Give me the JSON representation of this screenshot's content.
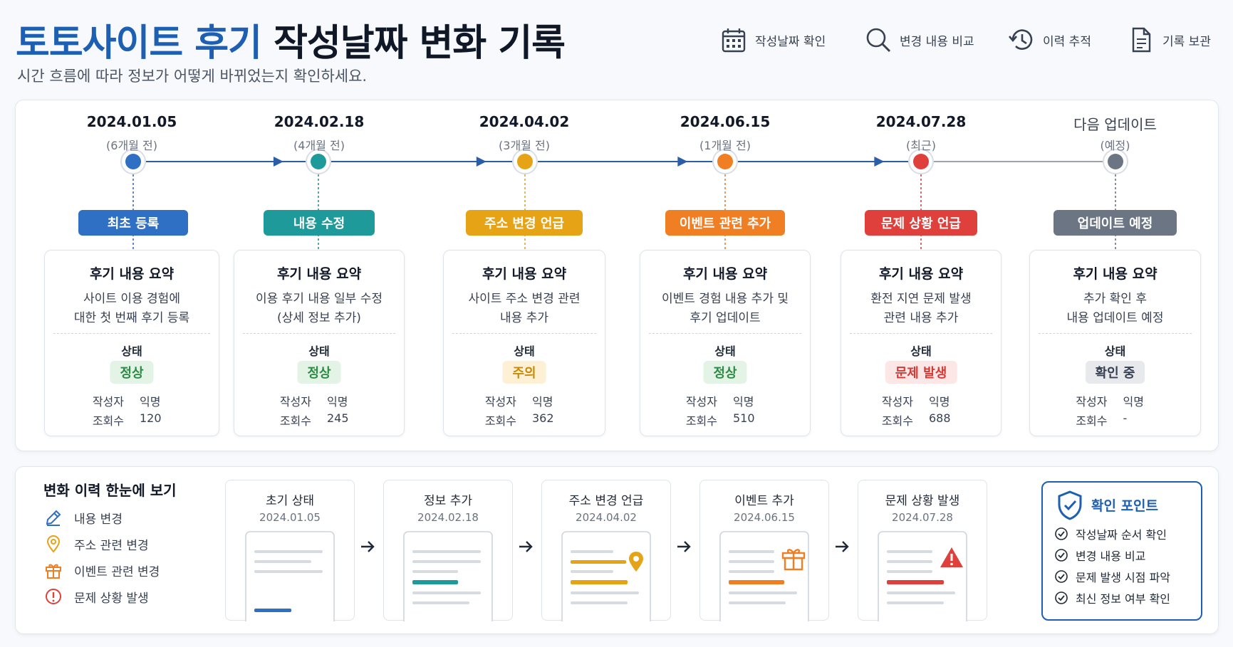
{
  "header": {
    "title_main": "토토사이트 후기",
    "title_rest": " 작성날짜 변화 기록",
    "subtitle": "시간 흐름에 따라 정보가 어떻게 바뀌었는지 확인하세요.",
    "actions": [
      {
        "label": "작성날짜 확인",
        "icon": "calendar-icon"
      },
      {
        "label": "변경 내용 비교",
        "icon": "search-icon"
      },
      {
        "label": "이력 추적",
        "icon": "history-icon"
      },
      {
        "label": "기록 보관",
        "icon": "document-icon"
      }
    ]
  },
  "timeline": {
    "stages": [
      {
        "date": "2024.01.05",
        "ago": "(6개월 전)",
        "tag": "최초 등록",
        "color": "#2f6fc4",
        "card_title": "후기 내용 요약",
        "desc": [
          "사이트 이용 경험에",
          "대한 첫 번째 후기 등록"
        ],
        "status_label": "상태",
        "status": "정상",
        "status_type": "normal",
        "author_label": "작성자",
        "author": "익명",
        "views_label": "조회수",
        "views": "120"
      },
      {
        "date": "2024.02.18",
        "ago": "(4개월 전)",
        "tag": "내용 수정",
        "color": "#1e9a9a",
        "card_title": "후기 내용 요약",
        "desc": [
          "이용 후기 내용 일부 수정",
          "(상세 정보 추가)"
        ],
        "status_label": "상태",
        "status": "정상",
        "status_type": "normal",
        "author_label": "작성자",
        "author": "익명",
        "views_label": "조회수",
        "views": "245"
      },
      {
        "date": "2024.04.02",
        "ago": "(3개월 전)",
        "tag": "주소 변경 언급",
        "color": "#e6a316",
        "card_title": "후기 내용 요약",
        "desc": [
          "사이트 주소 변경 관련",
          "내용 추가"
        ],
        "status_label": "상태",
        "status": "주의",
        "status_type": "warn",
        "author_label": "작성자",
        "author": "익명",
        "views_label": "조회수",
        "views": "362"
      },
      {
        "date": "2024.06.15",
        "ago": "(1개월 전)",
        "tag": "이벤트 관련 추가",
        "color": "#f07e23",
        "card_title": "후기 내용 요약",
        "desc": [
          "이벤트 경험 내용 추가 및",
          "후기 업데이트"
        ],
        "status_label": "상태",
        "status": "정상",
        "status_type": "normal",
        "author_label": "작성자",
        "author": "익명",
        "views_label": "조회수",
        "views": "510"
      },
      {
        "date": "2024.07.28",
        "ago": "(최근)",
        "tag": "문제 상황 언급",
        "color": "#e0403c",
        "card_title": "후기 내용 요약",
        "desc": [
          "환전 지연 문제 발생",
          "관련 내용 추가"
        ],
        "status_label": "상태",
        "status": "문제 발생",
        "status_type": "problem",
        "author_label": "작성자",
        "author": "익명",
        "views_label": "조회수",
        "views": "688"
      },
      {
        "date": "다음 업데이트",
        "ago": "(예정)",
        "tag": "업데이트 예정",
        "color": "#6b7583",
        "card_title": "후기 내용 요약",
        "desc": [
          "추가 확인 후",
          "내용 업데이트 예정"
        ],
        "status_label": "상태",
        "status": "확인 중",
        "status_type": "pending",
        "author_label": "작성자",
        "author": "익명",
        "views_label": "조회수",
        "views": "-"
      }
    ]
  },
  "history": {
    "title": "변화 이력 한눈에 보기",
    "legend": [
      {
        "label": "내용 변경",
        "icon": "edit-icon",
        "color": "#2f6fc4"
      },
      {
        "label": "주소 관련 변경",
        "icon": "location-pin-icon",
        "color": "#e6a316"
      },
      {
        "label": "이벤트 관련 변경",
        "icon": "gift-icon",
        "color": "#f07e23"
      },
      {
        "label": "문제 상황 발생",
        "icon": "alert-circle-icon",
        "color": "#e0403c"
      }
    ],
    "steps": [
      {
        "title": "초기 상태",
        "date": "2024.01.05",
        "accent": "#2f6fc4",
        "icon": "none"
      },
      {
        "title": "정보 추가",
        "date": "2024.02.18",
        "accent": "#1e9a9a",
        "icon": "none"
      },
      {
        "title": "주소 변경 언급",
        "date": "2024.04.02",
        "accent": "#e6a316",
        "icon": "location-pin-icon"
      },
      {
        "title": "이벤트 추가",
        "date": "2024.06.15",
        "accent": "#f07e23",
        "icon": "gift-icon"
      },
      {
        "title": "문제 상황 발생",
        "date": "2024.07.28",
        "accent": "#e0403c",
        "icon": "warning-triangle-icon"
      }
    ]
  },
  "checkpoints": {
    "title": "확인 포인트",
    "items": [
      "작성날짜 순서 확인",
      "변경 내용 비교",
      "문제 발생 시점 파악",
      "최신 정보 여부 확인"
    ]
  },
  "colors": {
    "brand": "#1d5fb3",
    "normal_bg": "#e3f4e6",
    "normal_fg": "#2e8b46",
    "warn_bg": "#fdf0d5",
    "warn_fg": "#c98a0c",
    "problem_bg": "#fde7e6",
    "problem_fg": "#d23a35",
    "pending_bg": "#e7e9ed",
    "pending_fg": "#374151"
  }
}
